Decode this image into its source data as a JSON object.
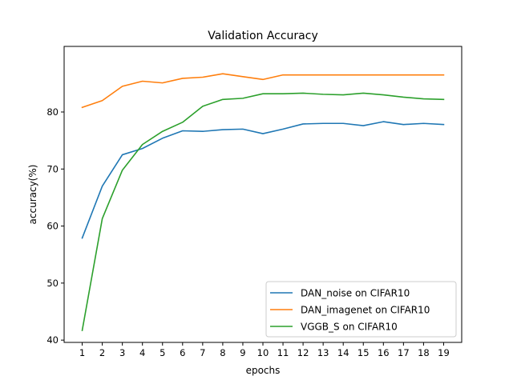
{
  "chart_data": {
    "type": "line",
    "title": "Validation Accuracy",
    "xlabel": "epochs",
    "ylabel": "accuracy(%)",
    "x": [
      1,
      2,
      3,
      4,
      5,
      6,
      7,
      8,
      9,
      10,
      11,
      12,
      13,
      14,
      15,
      16,
      17,
      18,
      19
    ],
    "xticks": [
      "1",
      "2",
      "3",
      "4",
      "5",
      "6",
      "7",
      "8",
      "9",
      "10",
      "11",
      "12",
      "13",
      "14",
      "15",
      "16",
      "17",
      "18",
      "19"
    ],
    "yticks": [
      "40",
      "50",
      "60",
      "70",
      "80"
    ],
    "xlim": [
      0.1,
      19.9
    ],
    "ylim": [
      39.6,
      91.5
    ],
    "grid": false,
    "legend_position": "lower-right",
    "series": [
      {
        "name": "DAN_noise on CIFAR10",
        "color": "#1f77b4",
        "values": [
          57.9,
          67.0,
          72.5,
          73.6,
          75.4,
          76.7,
          76.6,
          76.9,
          77.0,
          76.2,
          77.0,
          77.9,
          78.0,
          78.0,
          77.6,
          78.3,
          77.8,
          78.0,
          77.8
        ]
      },
      {
        "name": "DAN_imagenet on CIFAR10",
        "color": "#ff7f0e",
        "values": [
          80.8,
          82.0,
          84.5,
          85.4,
          85.1,
          85.9,
          86.1,
          86.7,
          86.2,
          85.7,
          86.5,
          86.5,
          86.5,
          86.5,
          86.5,
          86.5,
          86.5,
          86.5,
          86.5
        ]
      },
      {
        "name": "VGGB_S on CIFAR10",
        "color": "#2ca02c",
        "values": [
          41.7,
          61.3,
          69.8,
          74.3,
          76.6,
          78.2,
          81.0,
          82.2,
          82.4,
          83.2,
          83.2,
          83.3,
          83.1,
          83.0,
          83.3,
          83.0,
          82.6,
          82.3,
          82.2
        ]
      }
    ]
  }
}
